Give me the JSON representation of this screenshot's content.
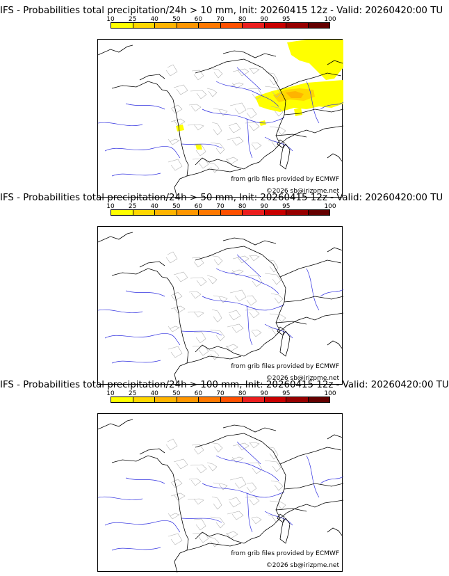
{
  "colorbar": {
    "ticks": [
      "10",
      "25",
      "40",
      "50",
      "60",
      "70",
      "80",
      "90",
      "95",
      "100"
    ],
    "colors": [
      "#ffff00",
      "#ffd700",
      "#ffb400",
      "#ff9600",
      "#ff7800",
      "#ff5000",
      "#eb1e1e",
      "#c80000",
      "#960000",
      "#640000"
    ]
  },
  "map": {
    "credit": "from grib files provided by ECMWF",
    "copyright": "©2026 sb@irizpme.net"
  },
  "panels": [
    {
      "title": "IFS - Probabilities total precipitation/24h > 10 mm, Init: 20260415 12z - Valid: 20260420:00 TU",
      "threshold_mm": 10
    },
    {
      "title": "IFS - Probabilities total precipitation/24h > 50 mm, Init: 20260415 12z - Valid: 20260420:00 TU",
      "threshold_mm": 50
    },
    {
      "title": "IFS - Probabilities total precipitation/24h > 100 mm, Init: 20260415 12z - Valid: 20260420:00 TU",
      "threshold_mm": 100
    }
  ]
}
